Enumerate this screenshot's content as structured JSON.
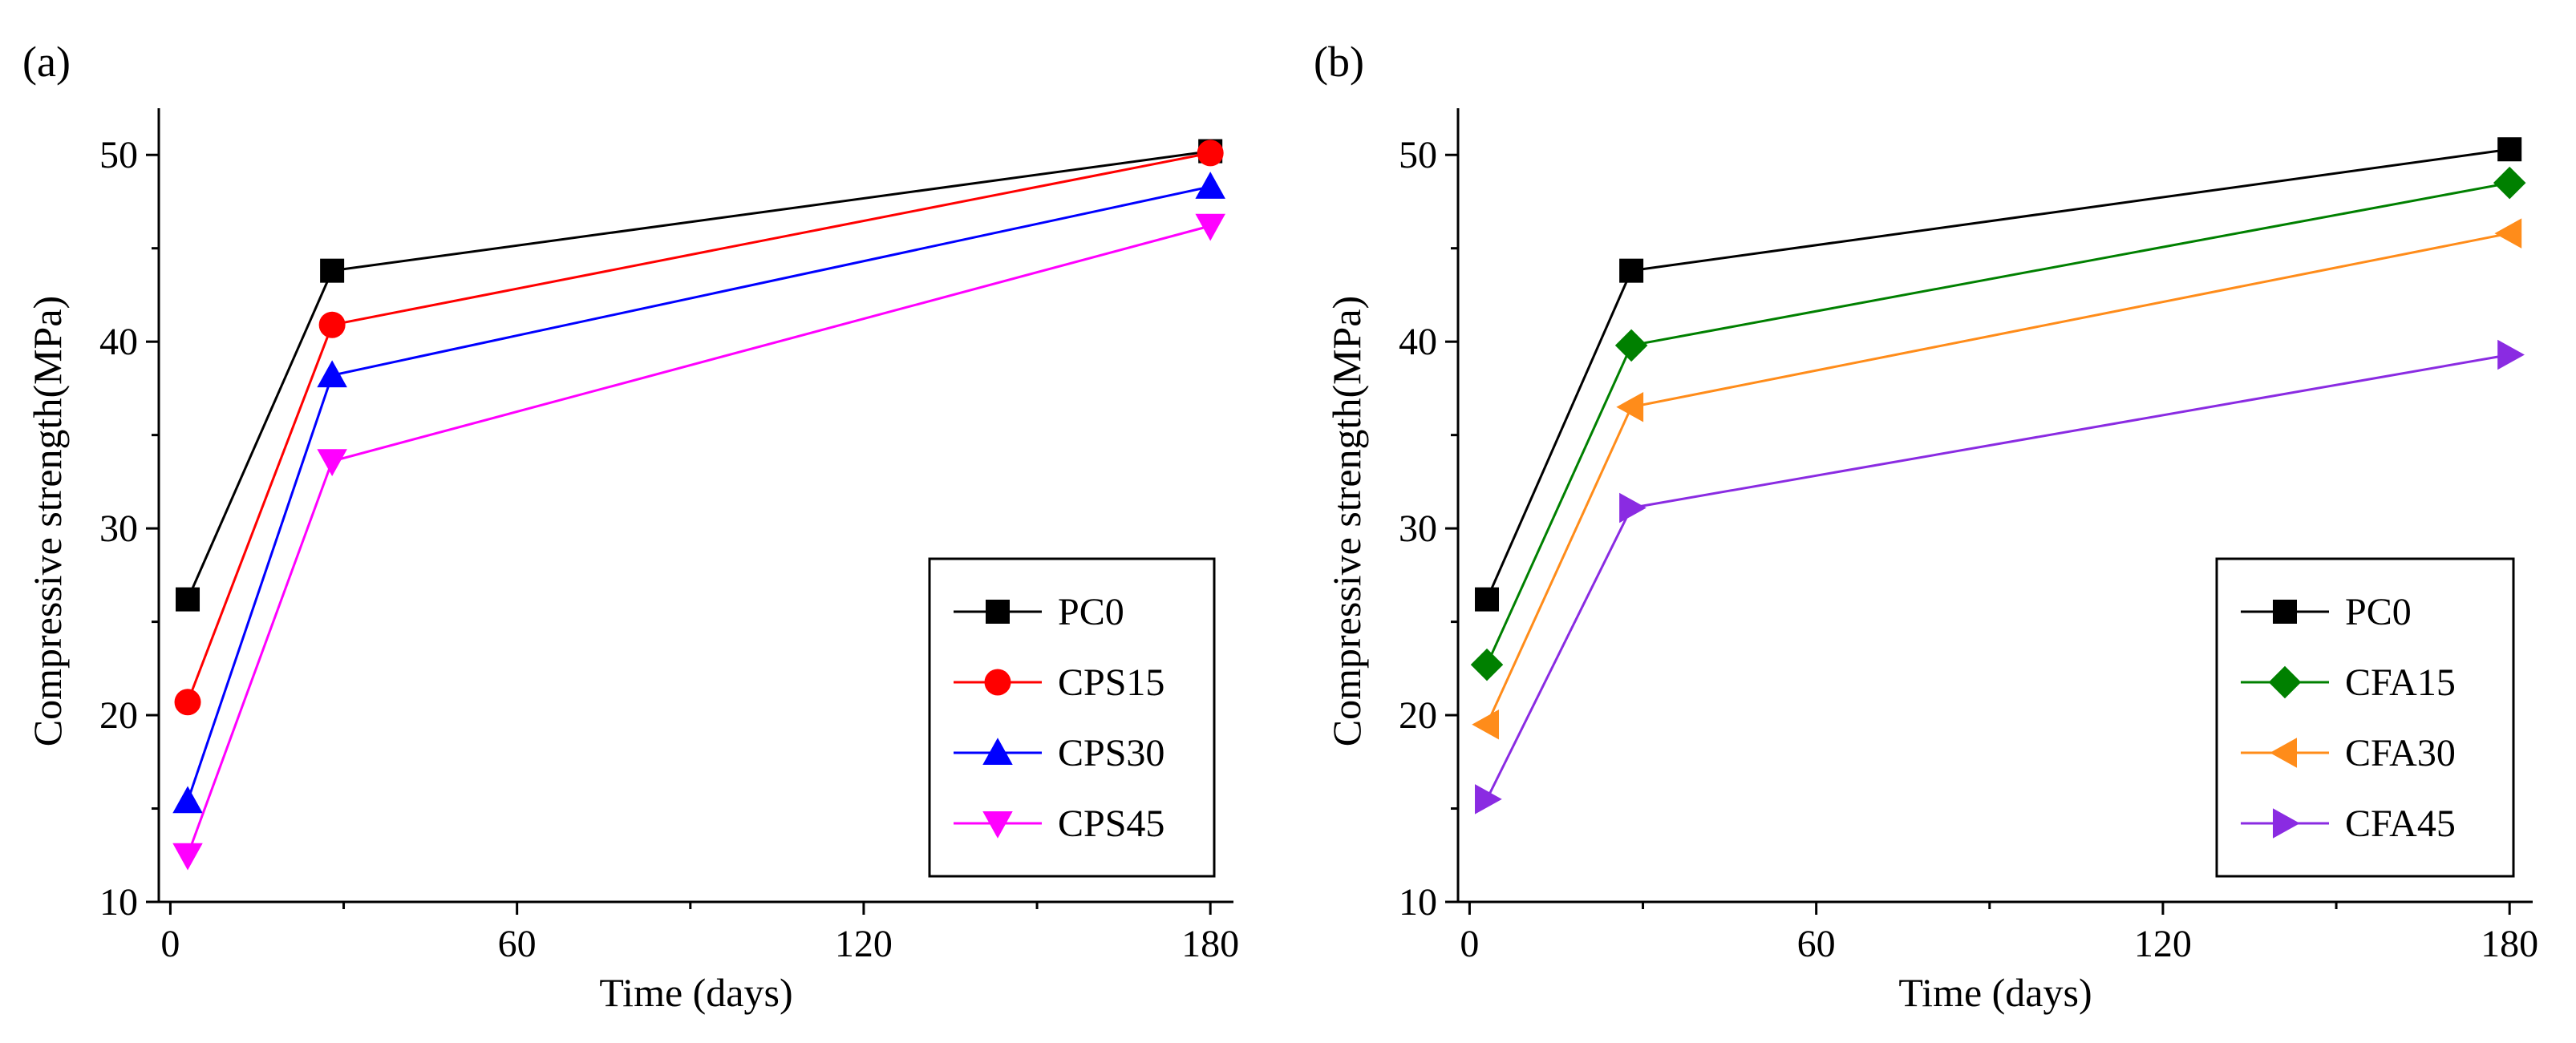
{
  "chart_data": [
    {
      "type": "line",
      "panel_label": "(a)",
      "xlabel": "Time (days)",
      "ylabel": "Compressive strength(MPa)",
      "xlim": [
        -2,
        184
      ],
      "ylim": [
        10,
        52.5
      ],
      "xticks": [
        0,
        60,
        120,
        180
      ],
      "yticks": [
        10,
        20,
        30,
        40,
        50
      ],
      "legend_position": "bottom-right",
      "x": [
        3,
        28,
        180
      ],
      "series": [
        {
          "name": "PC0",
          "values": [
            26.2,
            43.8,
            50.2
          ],
          "color": "#000000",
          "marker": "square"
        },
        {
          "name": "CPS15",
          "values": [
            20.7,
            40.9,
            50.1
          ],
          "color": "#ff0000",
          "marker": "circle"
        },
        {
          "name": "CPS30",
          "values": [
            15.4,
            38.2,
            48.3
          ],
          "color": "#0000ff",
          "marker": "triangle-up"
        },
        {
          "name": "CPS45",
          "values": [
            12.5,
            33.6,
            46.2
          ],
          "color": "#ff00ff",
          "marker": "triangle-down"
        }
      ]
    },
    {
      "type": "line",
      "panel_label": "(b)",
      "xlabel": "Time (days)",
      "ylabel": "Compressive strength(MPa)",
      "xlim": [
        -2,
        184
      ],
      "ylim": [
        10,
        52.5
      ],
      "xticks": [
        0,
        60,
        120,
        180
      ],
      "yticks": [
        10,
        20,
        30,
        40,
        50
      ],
      "legend_position": "bottom-right",
      "x": [
        3,
        28,
        180
      ],
      "series": [
        {
          "name": "PC0",
          "values": [
            26.2,
            43.8,
            50.3
          ],
          "color": "#000000",
          "marker": "square"
        },
        {
          "name": "CFA15",
          "values": [
            22.7,
            39.8,
            48.5
          ],
          "color": "#008000",
          "marker": "diamond"
        },
        {
          "name": "CFA30",
          "values": [
            19.5,
            36.5,
            45.8
          ],
          "color": "#ff8c1a",
          "marker": "triangle-left"
        },
        {
          "name": "CFA45",
          "values": [
            15.5,
            31.1,
            39.3
          ],
          "color": "#8a2be2",
          "marker": "triangle-right"
        }
      ]
    }
  ]
}
